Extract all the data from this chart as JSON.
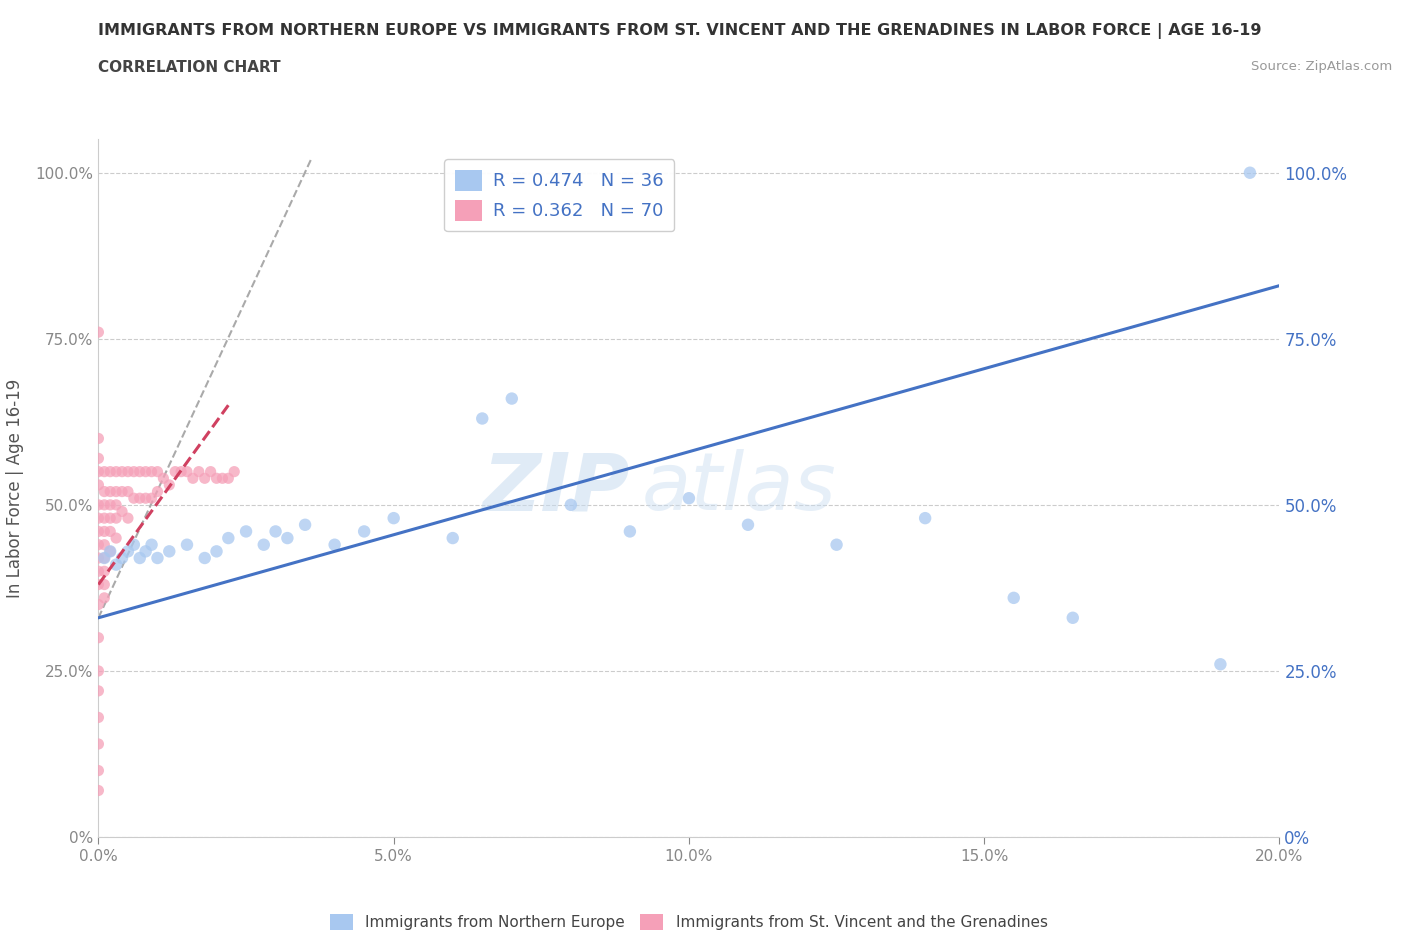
{
  "title": "IMMIGRANTS FROM NORTHERN EUROPE VS IMMIGRANTS FROM ST. VINCENT AND THE GRENADINES IN LABOR FORCE | AGE 16-19",
  "subtitle": "CORRELATION CHART",
  "source": "Source: ZipAtlas.com",
  "xlabel": "",
  "ylabel": "In Labor Force | Age 16-19",
  "xlim": [
    0.0,
    0.2
  ],
  "ylim": [
    0.0,
    1.05
  ],
  "xticks": [
    0.0,
    0.05,
    0.1,
    0.15,
    0.2
  ],
  "xticklabels": [
    "0.0%",
    "5.0%",
    "10.0%",
    "15.0%",
    "20.0%"
  ],
  "yticks_left": [
    0.0,
    0.25,
    0.5,
    0.75,
    1.0
  ],
  "yticklabels_left": [
    "0%",
    "25.0%",
    "50.0%",
    "75.0%",
    "100.0%"
  ],
  "yticklabels_right": [
    "0%",
    "25.0%",
    "50.0%",
    "75.0%",
    "100.0%"
  ],
  "blue_color": "#A8C8F0",
  "pink_color": "#F5A0B8",
  "blue_line_color": "#4472C4",
  "pink_line_color": "#D04060",
  "legend_R_blue": "R = 0.474",
  "legend_N_blue": "N = 36",
  "legend_R_pink": "R = 0.362",
  "legend_N_pink": "N = 70",
  "legend_label_blue": "Immigrants from Northern Europe",
  "legend_label_pink": "Immigrants from St. Vincent and the Grenadines",
  "watermark_zip": "ZIP",
  "watermark_atlas": "atlas",
  "blue_trend_x": [
    0.0,
    0.2
  ],
  "blue_trend_y": [
    0.33,
    0.83
  ],
  "pink_trend_x": [
    0.0,
    0.022
  ],
  "pink_trend_y": [
    0.38,
    0.65
  ],
  "blue_scatter_x": [
    0.001,
    0.002,
    0.003,
    0.004,
    0.005,
    0.006,
    0.007,
    0.008,
    0.009,
    0.01,
    0.012,
    0.015,
    0.018,
    0.02,
    0.022,
    0.025,
    0.028,
    0.03,
    0.032,
    0.035,
    0.04,
    0.045,
    0.05,
    0.06,
    0.065,
    0.07,
    0.08,
    0.09,
    0.1,
    0.11,
    0.125,
    0.14,
    0.155,
    0.165,
    0.19,
    0.195
  ],
  "blue_scatter_y": [
    0.42,
    0.43,
    0.41,
    0.42,
    0.43,
    0.44,
    0.42,
    0.43,
    0.44,
    0.42,
    0.43,
    0.44,
    0.42,
    0.43,
    0.45,
    0.46,
    0.44,
    0.46,
    0.45,
    0.47,
    0.44,
    0.46,
    0.48,
    0.45,
    0.63,
    0.66,
    0.5,
    0.46,
    0.51,
    0.47,
    0.44,
    0.48,
    0.36,
    0.33,
    0.26,
    1.0
  ],
  "blue_dot_size": 80,
  "pink_scatter_x": [
    0.0,
    0.0,
    0.0,
    0.0,
    0.0,
    0.0,
    0.0,
    0.0,
    0.0,
    0.0,
    0.0,
    0.0,
    0.0,
    0.0,
    0.0,
    0.0,
    0.0,
    0.0,
    0.0,
    0.0,
    0.001,
    0.001,
    0.001,
    0.001,
    0.001,
    0.001,
    0.001,
    0.001,
    0.001,
    0.001,
    0.002,
    0.002,
    0.002,
    0.002,
    0.002,
    0.002,
    0.003,
    0.003,
    0.003,
    0.003,
    0.003,
    0.004,
    0.004,
    0.004,
    0.005,
    0.005,
    0.005,
    0.006,
    0.006,
    0.007,
    0.007,
    0.008,
    0.008,
    0.009,
    0.009,
    0.01,
    0.01,
    0.011,
    0.012,
    0.013,
    0.014,
    0.015,
    0.016,
    0.017,
    0.018,
    0.019,
    0.02,
    0.021,
    0.022,
    0.023
  ],
  "pink_scatter_y": [
    0.76,
    0.6,
    0.57,
    0.55,
    0.53,
    0.5,
    0.48,
    0.46,
    0.44,
    0.42,
    0.4,
    0.38,
    0.35,
    0.3,
    0.25,
    0.22,
    0.18,
    0.14,
    0.1,
    0.07,
    0.55,
    0.52,
    0.5,
    0.48,
    0.46,
    0.44,
    0.42,
    0.4,
    0.38,
    0.36,
    0.55,
    0.52,
    0.5,
    0.48,
    0.46,
    0.43,
    0.55,
    0.52,
    0.5,
    0.48,
    0.45,
    0.55,
    0.52,
    0.49,
    0.55,
    0.52,
    0.48,
    0.55,
    0.51,
    0.55,
    0.51,
    0.55,
    0.51,
    0.55,
    0.51,
    0.55,
    0.52,
    0.54,
    0.53,
    0.55,
    0.55,
    0.55,
    0.54,
    0.55,
    0.54,
    0.55,
    0.54,
    0.54,
    0.54,
    0.55
  ],
  "pink_dot_size": 65
}
